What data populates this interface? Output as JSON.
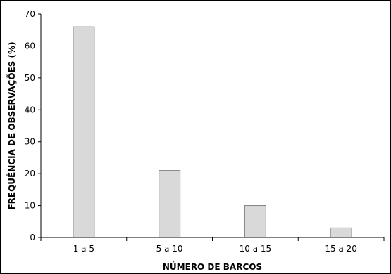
{
  "chart_data": {
    "type": "bar",
    "title": "",
    "xlabel": "NÚMERO DE BARCOS",
    "ylabel": "FREQUÊNCIA DE OBSERVAÇÕES (%)",
    "categories": [
      "1 a 5",
      "5 a 10",
      "10 a 15",
      "15 a 20"
    ],
    "values": [
      66,
      21,
      10,
      3
    ],
    "ylim": [
      0,
      70
    ],
    "yticks": [
      0,
      10,
      20,
      30,
      40,
      50,
      60,
      70
    ],
    "grid": false,
    "legend": "none",
    "bar_color": "#d9d9d9",
    "bar_edge_color": "#7f7f7f"
  }
}
